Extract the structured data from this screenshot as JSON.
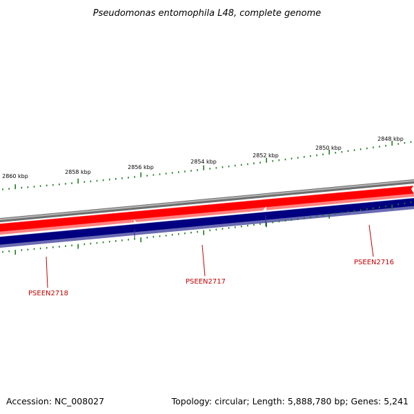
{
  "title": "Pseudomonas entomophila L48, complete genome",
  "footer": {
    "accession": "Accession: NC_008027",
    "stats": "Topology: circular; Length: 5,888,780 bp; Genes: 5,241"
  },
  "colors": {
    "backbone": "#808080",
    "forward_strand": "#ff0000",
    "reverse_strand": "#000080",
    "tick": "#1e7a1e",
    "gene_label": "#c00000"
  },
  "scale_labels": [
    "2860 kbp",
    "2858 kbp",
    "2856 kbp",
    "2854 kbp",
    "2852 kbp",
    "2850 kbp",
    "2848 kbp"
  ],
  "genes": [
    {
      "name": "PSEEN2718"
    },
    {
      "name": "PSEEN2717"
    },
    {
      "name": "PSEEN2716"
    }
  ]
}
